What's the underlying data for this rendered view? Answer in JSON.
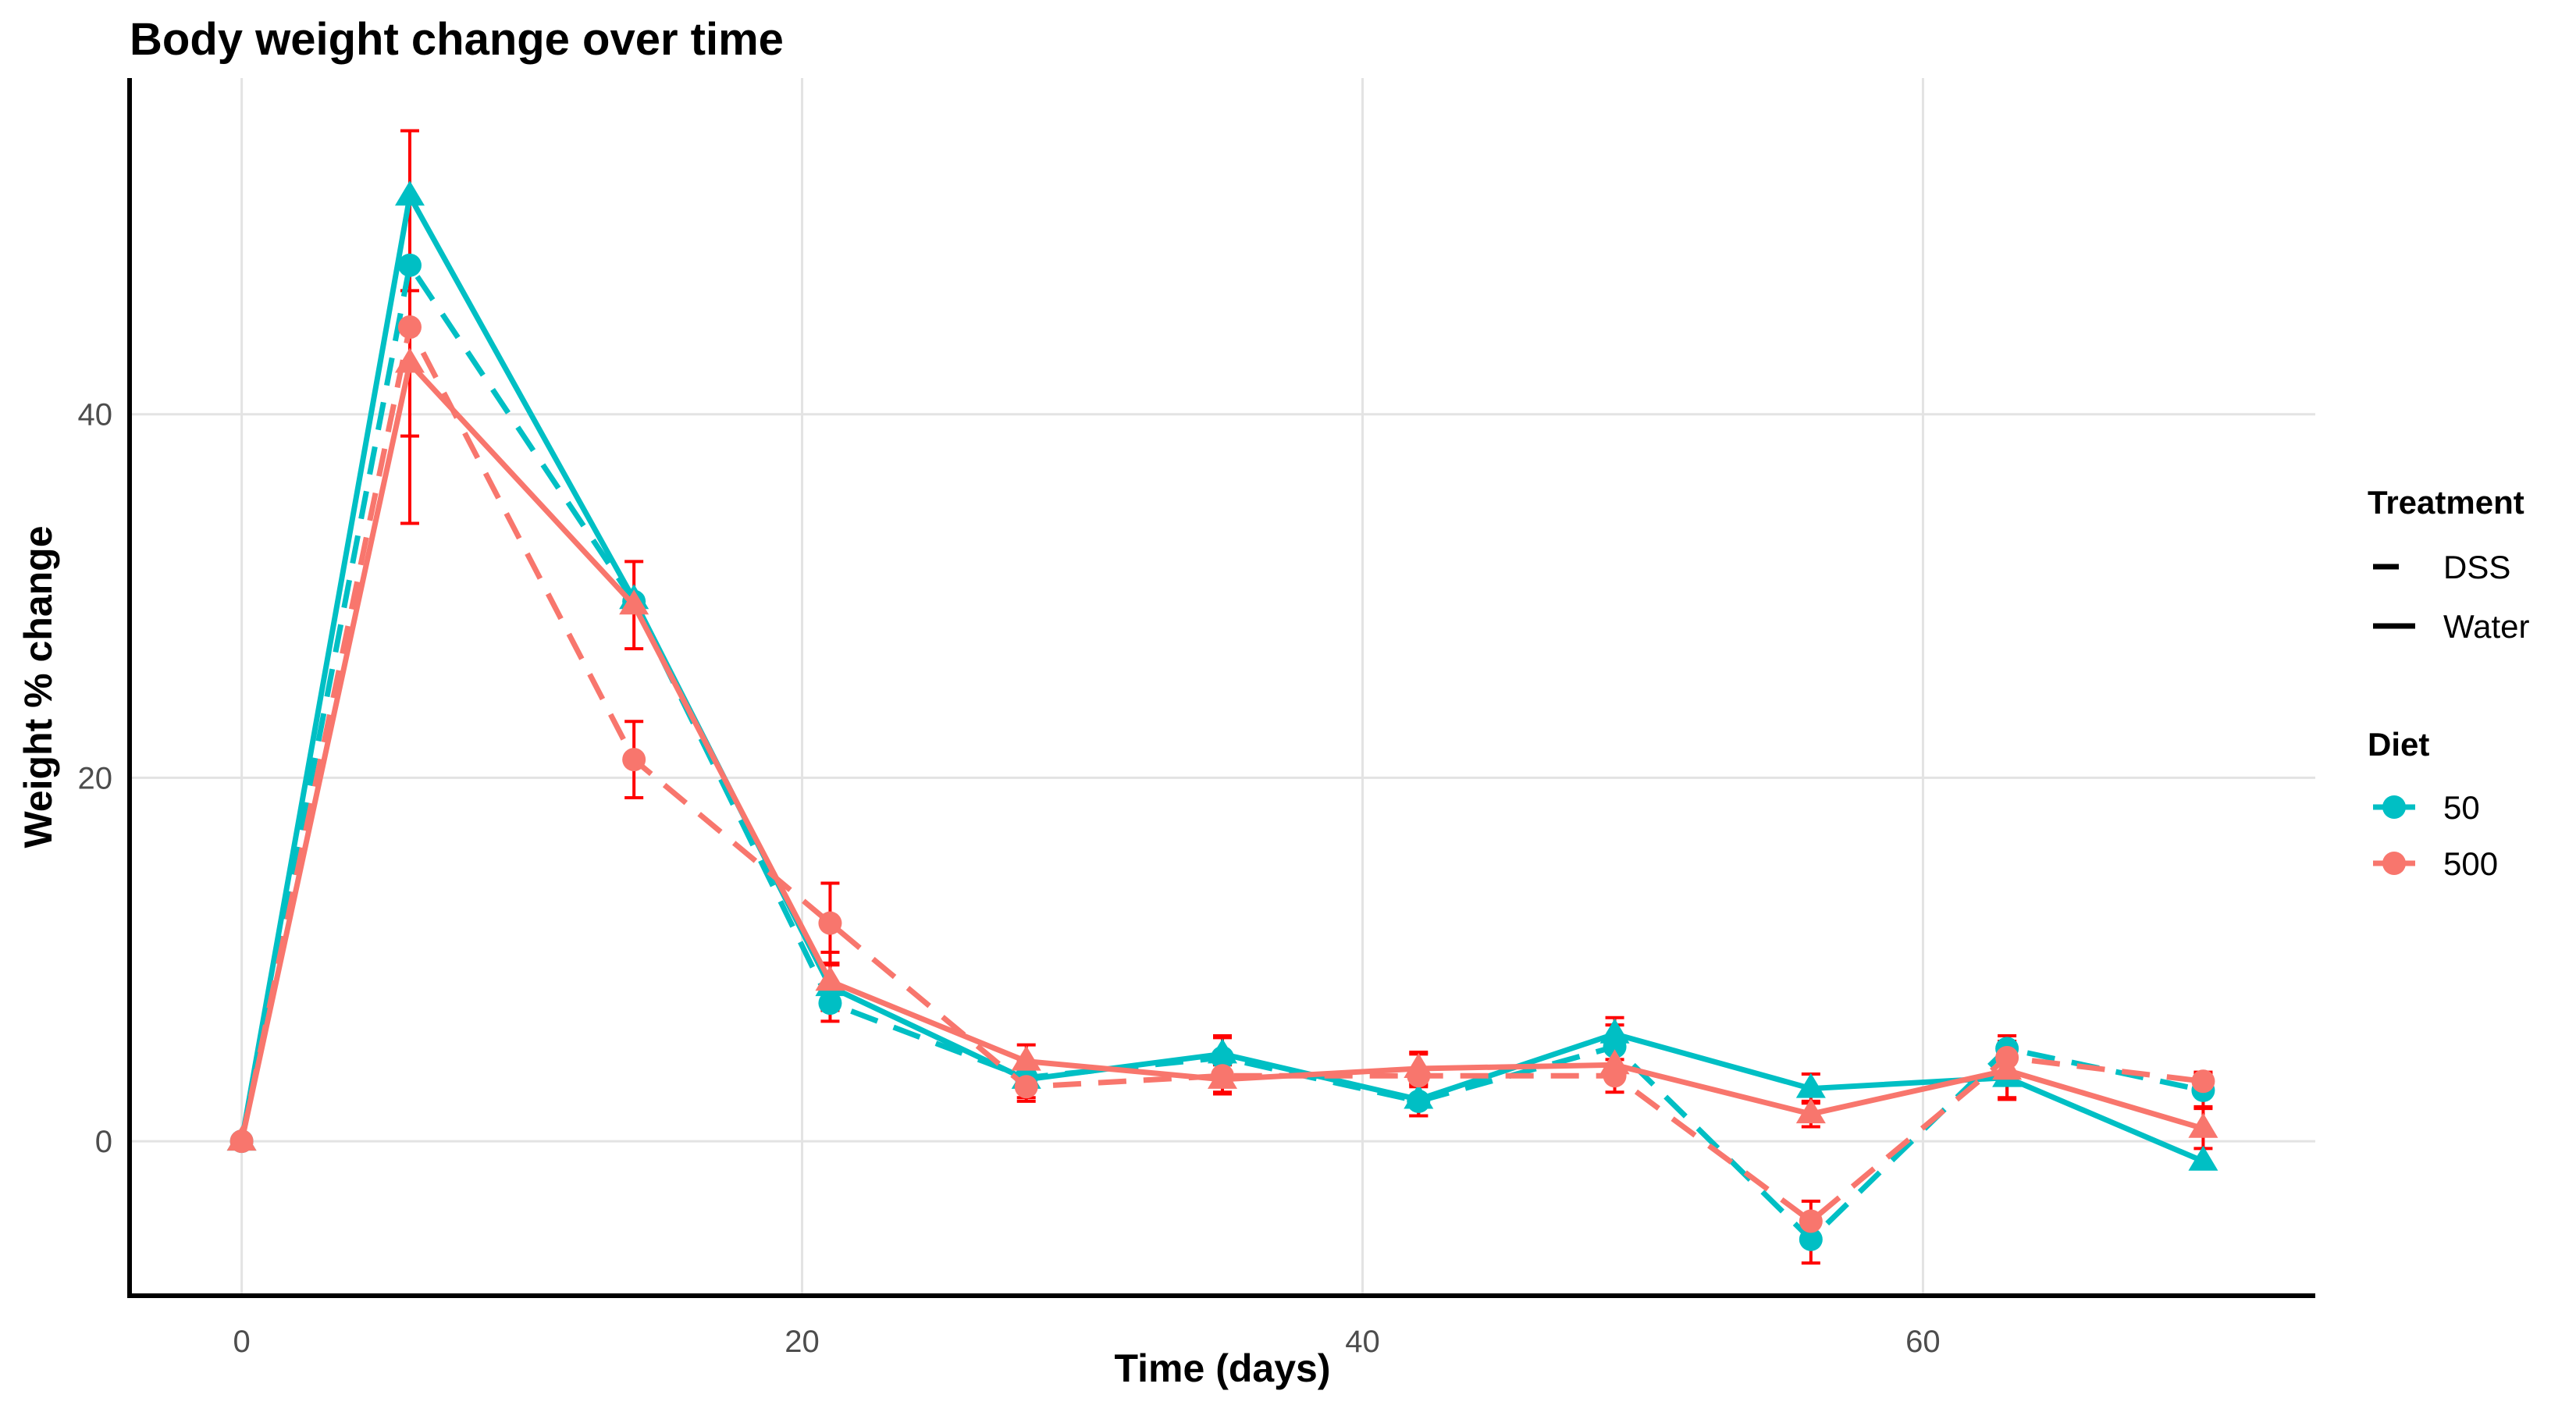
{
  "chart_data": {
    "type": "line",
    "title": "Body weight change over time",
    "xlabel": "Time (days)",
    "ylabel": "Weight % change",
    "xlim": [
      -4,
      74
    ],
    "ylim": [
      -8.5,
      58.5
    ],
    "x_ticks": [
      0,
      20,
      40,
      60
    ],
    "y_ticks": [
      0,
      20,
      40
    ],
    "grid": true,
    "legend_position": "right",
    "legend": {
      "treatment_title": "Treatment",
      "treatment_entries": [
        {
          "label": "DSS",
          "linetype": "dashed"
        },
        {
          "label": "Water",
          "linetype": "solid"
        }
      ],
      "diet_title": "Diet",
      "diet_entries": [
        {
          "label": "50",
          "color": "#00BFC4"
        },
        {
          "label": "500",
          "color": "#F8766D"
        }
      ]
    },
    "error_bar_color": "#FF0000",
    "x": [
      0,
      6,
      14,
      21,
      28,
      35,
      42,
      49,
      56,
      63,
      70
    ],
    "series": [
      {
        "diet": "50",
        "treatment": "Water",
        "color": "#00BFC4",
        "linetype": "solid",
        "marker": "triangle",
        "values": [
          0,
          52.0,
          29.8,
          8.5,
          3.4,
          4.8,
          2.3,
          5.9,
          2.9,
          3.5,
          -1.1
        ],
        "errors": [
          0,
          0,
          0,
          1.2,
          1.0,
          1.0,
          0.9,
          0.9,
          0.8,
          1.1,
          0
        ]
      },
      {
        "diet": "50",
        "treatment": "DSS",
        "color": "#00BFC4",
        "linetype": "dashed",
        "marker": "circle",
        "values": [
          0,
          48.2,
          29.7,
          7.6,
          3.5,
          4.6,
          2.2,
          5.2,
          -5.4,
          5.1,
          2.8
        ],
        "errors": [
          0,
          0,
          0,
          1.0,
          0.8,
          1.1,
          0.8,
          1.2,
          1.3,
          0.7,
          0.9
        ]
      },
      {
        "diet": "500",
        "treatment": "Water",
        "color": "#F8766D",
        "linetype": "solid",
        "marker": "triangle",
        "values": [
          0,
          42.8,
          29.5,
          8.8,
          4.4,
          3.4,
          4.0,
          4.2,
          1.5,
          3.9,
          0.7
        ],
        "errors": [
          0,
          4.0,
          2.4,
          1.6,
          0.9,
          0.8,
          0.9,
          0.7,
          0.7,
          1.6,
          1.1
        ]
      },
      {
        "diet": "500",
        "treatment": "DSS",
        "color": "#F8766D",
        "linetype": "dashed",
        "marker": "circle",
        "values": [
          0,
          44.8,
          21.0,
          12.0,
          3.0,
          3.6,
          3.6,
          3.6,
          -4.4,
          4.6,
          3.3
        ],
        "errors": [
          0,
          10.8,
          2.1,
          2.2,
          0.8,
          0.9,
          1.2,
          0.9,
          1.1,
          0.8,
          0.5
        ]
      }
    ]
  }
}
